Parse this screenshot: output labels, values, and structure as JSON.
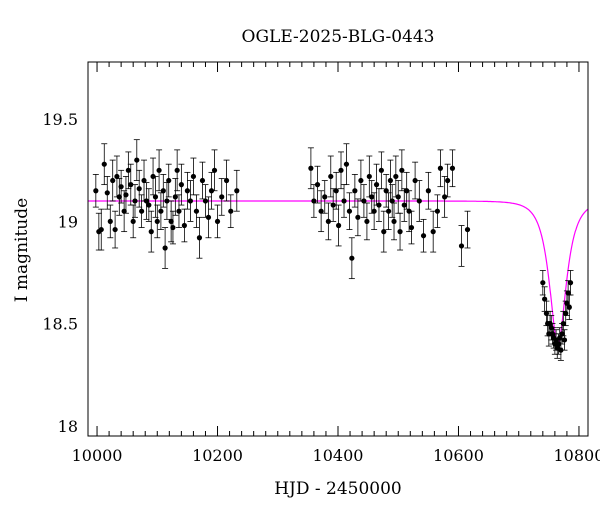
{
  "chart_data": {
    "type": "scatter",
    "title": "OGLE-2025-BLG-0443",
    "xlabel": "HJD - 2450000",
    "ylabel": "I magnitude",
    "xlim": [
      9985,
      10815
    ],
    "ylim": [
      19.78,
      17.95
    ],
    "y_inverted": true,
    "x_ticks": [
      10000,
      10200,
      10400,
      10600,
      10800
    ],
    "x_tick_labels": [
      "10000",
      "10200",
      "10400",
      "10600",
      "10800"
    ],
    "y_ticks": [
      18,
      18.5,
      19,
      19.5
    ],
    "y_tick_labels": [
      "18",
      "18.5",
      "19",
      "19.5"
    ],
    "grid": false,
    "colors": {
      "points": "#000000",
      "model": "#ff00ff"
    },
    "model": {
      "baseline": 19.1,
      "peak_mag": 18.4,
      "t0": 10765,
      "tE": 22
    },
    "points": [
      {
        "x": 9998,
        "y": 19.15,
        "err": 0.08
      },
      {
        "x": 10003,
        "y": 18.95,
        "err": 0.09
      },
      {
        "x": 10007,
        "y": 18.96,
        "err": 0.1
      },
      {
        "x": 10012,
        "y": 19.28,
        "err": 0.1
      },
      {
        "x": 10017,
        "y": 19.14,
        "err": 0.08
      },
      {
        "x": 10022,
        "y": 19.0,
        "err": 0.08
      },
      {
        "x": 10026,
        "y": 19.2,
        "err": 0.1
      },
      {
        "x": 10030,
        "y": 18.96,
        "err": 0.09
      },
      {
        "x": 10033,
        "y": 19.22,
        "err": 0.1
      },
      {
        "x": 10037,
        "y": 19.12,
        "err": 0.09
      },
      {
        "x": 10040,
        "y": 19.17,
        "err": 0.08
      },
      {
        "x": 10045,
        "y": 19.05,
        "err": 0.1
      },
      {
        "x": 10048,
        "y": 19.13,
        "err": 0.09
      },
      {
        "x": 10052,
        "y": 19.25,
        "err": 0.09
      },
      {
        "x": 10056,
        "y": 19.18,
        "err": 0.1
      },
      {
        "x": 10060,
        "y": 19.0,
        "err": 0.08
      },
      {
        "x": 10063,
        "y": 19.1,
        "err": 0.08
      },
      {
        "x": 10066,
        "y": 19.3,
        "err": 0.1
      },
      {
        "x": 10070,
        "y": 19.16,
        "err": 0.09
      },
      {
        "x": 10074,
        "y": 19.05,
        "err": 0.08
      },
      {
        "x": 10078,
        "y": 19.2,
        "err": 0.1
      },
      {
        "x": 10082,
        "y": 19.1,
        "err": 0.09
      },
      {
        "x": 10086,
        "y": 19.08,
        "err": 0.08
      },
      {
        "x": 10090,
        "y": 18.95,
        "err": 0.1
      },
      {
        "x": 10093,
        "y": 19.22,
        "err": 0.09
      },
      {
        "x": 10097,
        "y": 19.12,
        "err": 0.1
      },
      {
        "x": 10100,
        "y": 19.0,
        "err": 0.08
      },
      {
        "x": 10103,
        "y": 19.25,
        "err": 0.1
      },
      {
        "x": 10106,
        "y": 19.05,
        "err": 0.09
      },
      {
        "x": 10110,
        "y": 19.15,
        "err": 0.08
      },
      {
        "x": 10113,
        "y": 18.87,
        "err": 0.1
      },
      {
        "x": 10116,
        "y": 19.1,
        "err": 0.09
      },
      {
        "x": 10119,
        "y": 19.2,
        "err": 0.08
      },
      {
        "x": 10123,
        "y": 19.0,
        "err": 0.1
      },
      {
        "x": 10126,
        "y": 18.97,
        "err": 0.08
      },
      {
        "x": 10130,
        "y": 19.12,
        "err": 0.09
      },
      {
        "x": 10133,
        "y": 19.25,
        "err": 0.1
      },
      {
        "x": 10136,
        "y": 19.05,
        "err": 0.08
      },
      {
        "x": 10140,
        "y": 19.18,
        "err": 0.1
      },
      {
        "x": 10145,
        "y": 18.98,
        "err": 0.08
      },
      {
        "x": 10150,
        "y": 19.15,
        "err": 0.09
      },
      {
        "x": 10155,
        "y": 19.1,
        "err": 0.1
      },
      {
        "x": 10160,
        "y": 19.22,
        "err": 0.09
      },
      {
        "x": 10165,
        "y": 19.05,
        "err": 0.08
      },
      {
        "x": 10170,
        "y": 18.92,
        "err": 0.1
      },
      {
        "x": 10175,
        "y": 19.2,
        "err": 0.09
      },
      {
        "x": 10180,
        "y": 19.1,
        "err": 0.08
      },
      {
        "x": 10185,
        "y": 19.02,
        "err": 0.1
      },
      {
        "x": 10190,
        "y": 19.15,
        "err": 0.09
      },
      {
        "x": 10195,
        "y": 19.25,
        "err": 0.1
      },
      {
        "x": 10200,
        "y": 19.0,
        "err": 0.08
      },
      {
        "x": 10207,
        "y": 19.12,
        "err": 0.09
      },
      {
        "x": 10215,
        "y": 19.2,
        "err": 0.1
      },
      {
        "x": 10222,
        "y": 19.05,
        "err": 0.08
      },
      {
        "x": 10232,
        "y": 19.15,
        "err": 0.1
      },
      {
        "x": 10355,
        "y": 19.26,
        "err": 0.1
      },
      {
        "x": 10360,
        "y": 19.1,
        "err": 0.08
      },
      {
        "x": 10366,
        "y": 19.18,
        "err": 0.09
      },
      {
        "x": 10372,
        "y": 19.05,
        "err": 0.1
      },
      {
        "x": 10378,
        "y": 19.12,
        "err": 0.08
      },
      {
        "x": 10384,
        "y": 19.0,
        "err": 0.09
      },
      {
        "x": 10388,
        "y": 19.22,
        "err": 0.1
      },
      {
        "x": 10392,
        "y": 19.08,
        "err": 0.08
      },
      {
        "x": 10397,
        "y": 19.15,
        "err": 0.09
      },
      {
        "x": 10401,
        "y": 18.98,
        "err": 0.1
      },
      {
        "x": 10405,
        "y": 19.25,
        "err": 0.09
      },
      {
        "x": 10410,
        "y": 19.1,
        "err": 0.08
      },
      {
        "x": 10414,
        "y": 19.28,
        "err": 0.1
      },
      {
        "x": 10419,
        "y": 19.05,
        "err": 0.09
      },
      {
        "x": 10423,
        "y": 18.82,
        "err": 0.1
      },
      {
        "x": 10428,
        "y": 19.15,
        "err": 0.08
      },
      {
        "x": 10433,
        "y": 19.02,
        "err": 0.09
      },
      {
        "x": 10438,
        "y": 19.2,
        "err": 0.1
      },
      {
        "x": 10443,
        "y": 19.1,
        "err": 0.08
      },
      {
        "x": 10448,
        "y": 19.0,
        "err": 0.09
      },
      {
        "x": 10452,
        "y": 19.22,
        "err": 0.1
      },
      {
        "x": 10456,
        "y": 19.12,
        "err": 0.08
      },
      {
        "x": 10460,
        "y": 19.05,
        "err": 0.09
      },
      {
        "x": 10464,
        "y": 19.18,
        "err": 0.1
      },
      {
        "x": 10468,
        "y": 19.08,
        "err": 0.08
      },
      {
        "x": 10472,
        "y": 19.25,
        "err": 0.09
      },
      {
        "x": 10476,
        "y": 18.95,
        "err": 0.1
      },
      {
        "x": 10480,
        "y": 19.15,
        "err": 0.08
      },
      {
        "x": 10484,
        "y": 19.05,
        "err": 0.09
      },
      {
        "x": 10487,
        "y": 19.2,
        "err": 0.1
      },
      {
        "x": 10490,
        "y": 19.1,
        "err": 0.08
      },
      {
        "x": 10493,
        "y": 19.0,
        "err": 0.09
      },
      {
        "x": 10496,
        "y": 19.22,
        "err": 0.1
      },
      {
        "x": 10500,
        "y": 19.12,
        "err": 0.08
      },
      {
        "x": 10503,
        "y": 18.95,
        "err": 0.09
      },
      {
        "x": 10506,
        "y": 19.25,
        "err": 0.1
      },
      {
        "x": 10510,
        "y": 19.08,
        "err": 0.08
      },
      {
        "x": 10514,
        "y": 19.15,
        "err": 0.09
      },
      {
        "x": 10518,
        "y": 19.05,
        "err": 0.1
      },
      {
        "x": 10522,
        "y": 18.97,
        "err": 0.08
      },
      {
        "x": 10528,
        "y": 19.2,
        "err": 0.09
      },
      {
        "x": 10535,
        "y": 19.1,
        "err": 0.1
      },
      {
        "x": 10542,
        "y": 18.93,
        "err": 0.08
      },
      {
        "x": 10550,
        "y": 19.15,
        "err": 0.09
      },
      {
        "x": 10558,
        "y": 18.95,
        "err": 0.1
      },
      {
        "x": 10565,
        "y": 19.05,
        "err": 0.08
      },
      {
        "x": 10570,
        "y": 19.26,
        "err": 0.09
      },
      {
        "x": 10577,
        "y": 19.12,
        "err": 0.1
      },
      {
        "x": 10582,
        "y": 19.2,
        "err": 0.08
      },
      {
        "x": 10590,
        "y": 19.26,
        "err": 0.09
      },
      {
        "x": 10605,
        "y": 18.88,
        "err": 0.1
      },
      {
        "x": 10615,
        "y": 18.96,
        "err": 0.09
      },
      {
        "x": 10740,
        "y": 18.7,
        "err": 0.06
      },
      {
        "x": 10743,
        "y": 18.62,
        "err": 0.06
      },
      {
        "x": 10746,
        "y": 18.55,
        "err": 0.06
      },
      {
        "x": 10748,
        "y": 18.5,
        "err": 0.06
      },
      {
        "x": 10750,
        "y": 18.45,
        "err": 0.06
      },
      {
        "x": 10752,
        "y": 18.5,
        "err": 0.06
      },
      {
        "x": 10754,
        "y": 18.48,
        "err": 0.06
      },
      {
        "x": 10756,
        "y": 18.45,
        "err": 0.05
      },
      {
        "x": 10758,
        "y": 18.43,
        "err": 0.05
      },
      {
        "x": 10760,
        "y": 18.4,
        "err": 0.05
      },
      {
        "x": 10762,
        "y": 18.42,
        "err": 0.05
      },
      {
        "x": 10764,
        "y": 18.38,
        "err": 0.05
      },
      {
        "x": 10766,
        "y": 18.4,
        "err": 0.05
      },
      {
        "x": 10768,
        "y": 18.43,
        "err": 0.05
      },
      {
        "x": 10770,
        "y": 18.37,
        "err": 0.05
      },
      {
        "x": 10772,
        "y": 18.45,
        "err": 0.05
      },
      {
        "x": 10774,
        "y": 18.5,
        "err": 0.06
      },
      {
        "x": 10776,
        "y": 18.42,
        "err": 0.05
      },
      {
        "x": 10778,
        "y": 18.55,
        "err": 0.06
      },
      {
        "x": 10780,
        "y": 18.6,
        "err": 0.06
      },
      {
        "x": 10782,
        "y": 18.65,
        "err": 0.06
      },
      {
        "x": 10784,
        "y": 18.58,
        "err": 0.06
      },
      {
        "x": 10786,
        "y": 18.7,
        "err": 0.06
      }
    ]
  }
}
